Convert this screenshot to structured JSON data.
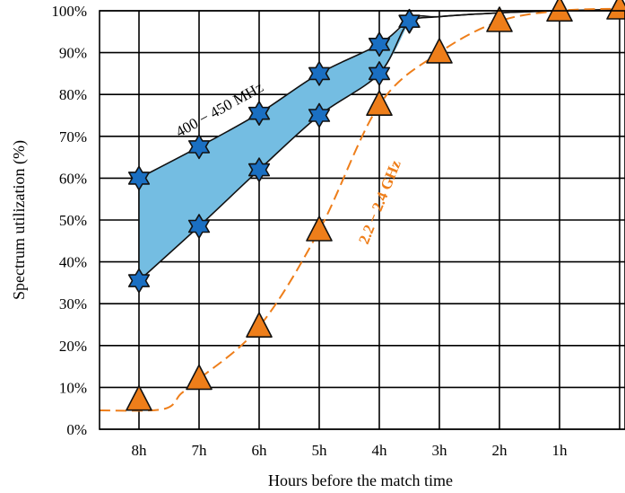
{
  "chart_data": {
    "type": "line",
    "xlabel": "Hours before the match time",
    "ylabel": "Spectrum utilization (%)",
    "x_ticks": [
      "8h",
      "7h",
      "6h",
      "5h",
      "4h",
      "3h",
      "2h",
      "1h"
    ],
    "y_ticks": [
      "0%",
      "10%",
      "20%",
      "30%",
      "40%",
      "50%",
      "60%",
      "70%",
      "80%",
      "90%",
      "100%"
    ],
    "ylim": [
      0,
      100
    ],
    "grid": true,
    "series": [
      {
        "name": "400 − 450 MHz",
        "kind": "band-upper",
        "marker": "star",
        "color": "#1a6fc2",
        "x": [
          8,
          7,
          6,
          5,
          4,
          3.5
        ],
        "values": [
          60,
          67.5,
          75.5,
          85,
          92,
          97.5
        ]
      },
      {
        "name": "400 − 450 MHz",
        "kind": "band-lower",
        "marker": "star",
        "color": "#1a6fc2",
        "x": [
          8,
          7,
          6,
          5,
          4,
          3.5
        ],
        "values": [
          35.5,
          48.5,
          62,
          75,
          85,
          97.5
        ]
      },
      {
        "name": "2.2 − 2.4 GHz",
        "kind": "dashed",
        "marker": "triangle",
        "color": "#ee7e1a",
        "x": [
          8,
          7,
          6,
          5,
          4,
          3,
          2,
          1,
          0
        ],
        "values": [
          7,
          12,
          24.5,
          47.5,
          77.5,
          90,
          97.5,
          100,
          100.5
        ]
      }
    ],
    "band_fill_color": "#74bde2",
    "labels": {
      "blue": "400 − 450 MHz",
      "orange": "2.2 − 2.4 GHz"
    }
  }
}
